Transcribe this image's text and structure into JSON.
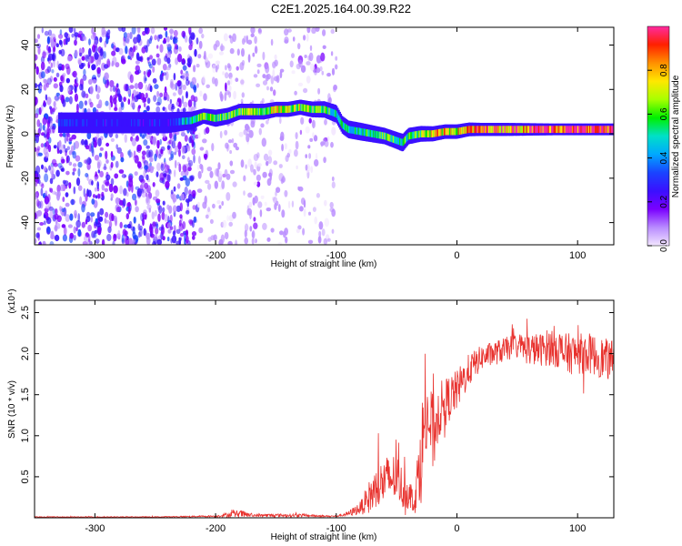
{
  "page": {
    "title": "C2E1.2025.164.00.39.R22"
  },
  "colors": {
    "background": "#ffffff",
    "snr_line": "#e8322e",
    "axis": "#000000"
  },
  "chart_data": [
    {
      "type": "heatmap",
      "xlabel": "Height of straight line (km)",
      "ylabel": "Frequency (Hz)",
      "xlim": [
        -350,
        130
      ],
      "ylim": [
        -50,
        48
      ],
      "x_ticks": [
        -300,
        -200,
        -100,
        0,
        100
      ],
      "y_ticks": [
        40,
        20,
        0,
        -20,
        -40
      ],
      "colorbar": {
        "label": "Normalized spectral amplitude",
        "range": [
          0,
          1
        ],
        "ticks": [
          0.0,
          0.2,
          0.4,
          0.6,
          0.8
        ],
        "colormap": [
          "#f2e6ff",
          "#b98cff",
          "#7a00ff",
          "#3a10ff",
          "#1a44ff",
          "#00a8ff",
          "#00e0c8",
          "#00f000",
          "#a8ff00",
          "#ffe800",
          "#ff9000",
          "#ff2000",
          "#ff2aa0"
        ]
      },
      "ridge": {
        "x": [
          -330,
          -320,
          -300,
          -280,
          -260,
          -240,
          -220,
          -210,
          -200,
          -190,
          -180,
          -170,
          -160,
          -150,
          -140,
          -130,
          -120,
          -110,
          -100,
          -95,
          -90,
          -80,
          -70,
          -60,
          -50,
          -45,
          -40,
          -30,
          -20,
          -10,
          0,
          10,
          20,
          40,
          60,
          80,
          100,
          130
        ],
        "y": [
          5,
          5,
          5,
          5,
          5,
          5,
          6,
          8,
          7,
          8,
          10,
          10,
          10,
          11,
          11,
          12,
          11,
          11,
          9,
          4,
          2,
          1,
          0,
          -1,
          -3,
          -4,
          -1,
          0,
          0,
          1,
          1,
          2,
          2,
          2,
          2,
          2,
          2,
          2
        ],
        "amplitude": [
          0.3,
          0.3,
          0.25,
          0.25,
          0.25,
          0.25,
          0.5,
          0.7,
          0.55,
          0.6,
          0.65,
          0.65,
          0.65,
          0.7,
          0.7,
          0.7,
          0.65,
          0.6,
          0.5,
          0.5,
          0.5,
          0.5,
          0.55,
          0.6,
          0.55,
          0.5,
          0.6,
          0.65,
          0.7,
          0.75,
          0.75,
          0.8,
          0.85,
          0.85,
          0.9,
          0.95,
          0.95,
          0.95
        ]
      },
      "noise_regions": [
        {
          "x_range": [
            -350,
            -215
          ],
          "amplitude": 0.2
        },
        {
          "x_range": [
            -215,
            -100
          ],
          "amplitude": 0.08
        }
      ]
    },
    {
      "type": "line",
      "xlabel": "Height of straight line (km)",
      "ylabel": "SNR (10 * v/v)",
      "y_multiplier": "(x10⁴)",
      "xlim": [
        -350,
        130
      ],
      "ylim": [
        0,
        2.65
      ],
      "x_ticks": [
        -300,
        -200,
        -100,
        0,
        100
      ],
      "y_ticks": [
        0.5,
        1.0,
        1.5,
        2.0,
        2.5
      ],
      "series": [
        {
          "color": "#e8322e",
          "x": [
            -350,
            -300,
            -250,
            -200,
            -180,
            -170,
            -150,
            -130,
            -110,
            -100,
            -90,
            -80,
            -70,
            -60,
            -50,
            -45,
            -40,
            -35,
            -30,
            -25,
            -20,
            -15,
            -10,
            0,
            10,
            20,
            30,
            40,
            50,
            60,
            70,
            80,
            90,
            100,
            110,
            120,
            130
          ],
          "y": [
            0.01,
            0.01,
            0.01,
            0.02,
            0.05,
            0.03,
            0.03,
            0.03,
            0.02,
            0.02,
            0.05,
            0.12,
            0.3,
            0.45,
            0.5,
            0.35,
            0.3,
            0.2,
            0.75,
            1.3,
            1.0,
            1.3,
            1.4,
            1.55,
            1.8,
            1.95,
            2.0,
            2.05,
            2.1,
            2.05,
            2.05,
            2.1,
            2.0,
            2.0,
            2.0,
            1.95,
            1.9
          ],
          "noise": [
            0.005,
            0.005,
            0.005,
            0.01,
            0.05,
            0.02,
            0.02,
            0.02,
            0.01,
            0.01,
            0.03,
            0.08,
            0.25,
            0.3,
            0.3,
            0.25,
            0.2,
            0.15,
            0.6,
            0.6,
            0.5,
            0.35,
            0.3,
            0.25,
            0.2,
            0.15,
            0.15,
            0.15,
            0.15,
            0.2,
            0.2,
            0.25,
            0.25,
            0.25,
            0.25,
            0.25,
            0.25
          ]
        }
      ]
    }
  ]
}
